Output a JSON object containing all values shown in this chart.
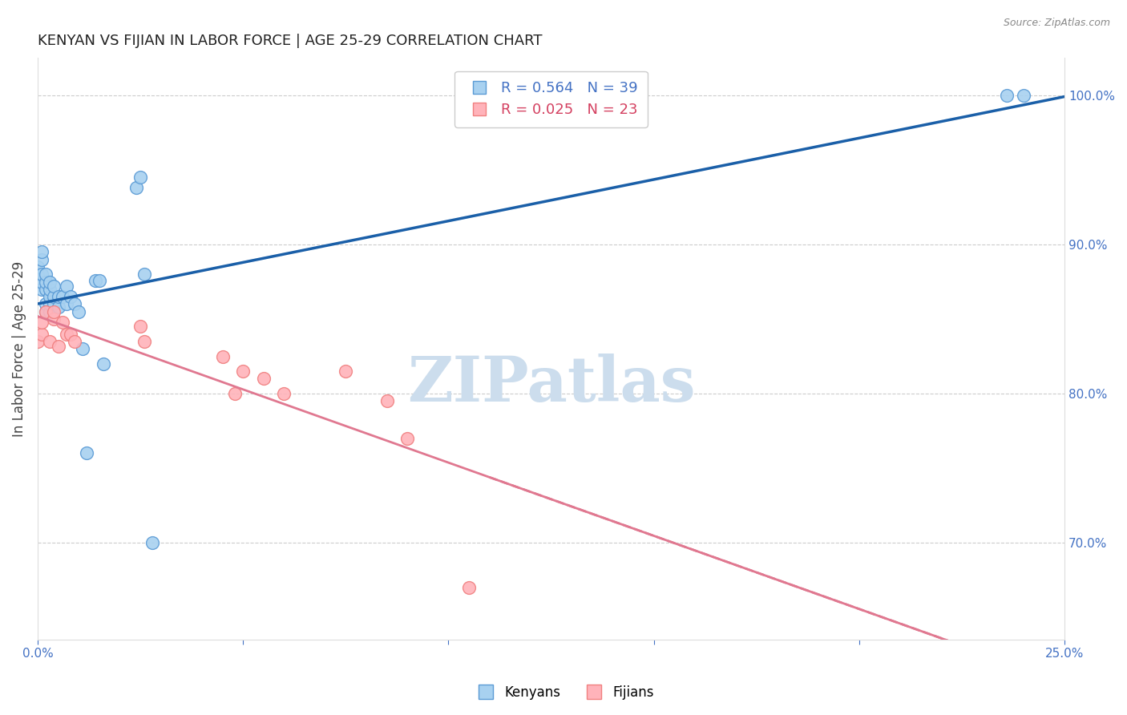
{
  "title": "KENYAN VS FIJIAN IN LABOR FORCE | AGE 25-29 CORRELATION CHART",
  "source": "Source: ZipAtlas.com",
  "ylabel": "In Labor Force | Age 25-29",
  "xlim": [
    0.0,
    0.25
  ],
  "ylim": [
    0.635,
    1.025
  ],
  "right_yticks": [
    0.7,
    0.8,
    0.9,
    1.0
  ],
  "right_yticklabels": [
    "70.0%",
    "80.0%",
    "90.0%",
    "100.0%"
  ],
  "xticks": [
    0.0,
    0.05,
    0.1,
    0.15,
    0.2,
    0.25
  ],
  "xticklabels": [
    "0.0%",
    "",
    "",
    "",
    "",
    "25.0%"
  ],
  "kenyan_x": [
    0.0,
    0.0,
    0.001,
    0.001,
    0.001,
    0.001,
    0.001,
    0.002,
    0.002,
    0.002,
    0.002,
    0.002,
    0.003,
    0.003,
    0.003,
    0.003,
    0.003,
    0.004,
    0.004,
    0.004,
    0.005,
    0.005,
    0.006,
    0.007,
    0.007,
    0.008,
    0.009,
    0.01,
    0.011,
    0.012,
    0.014,
    0.015,
    0.016,
    0.024,
    0.025,
    0.026,
    0.028,
    0.236,
    0.24
  ],
  "kenyan_y": [
    0.88,
    0.885,
    0.87,
    0.875,
    0.88,
    0.89,
    0.895,
    0.855,
    0.86,
    0.87,
    0.875,
    0.88,
    0.855,
    0.86,
    0.865,
    0.87,
    0.875,
    0.86,
    0.865,
    0.872,
    0.858,
    0.865,
    0.865,
    0.86,
    0.872,
    0.865,
    0.86,
    0.855,
    0.83,
    0.76,
    0.876,
    0.876,
    0.82,
    0.938,
    0.945,
    0.88,
    0.7,
    1.0,
    1.0
  ],
  "fijian_x": [
    0.0,
    0.001,
    0.001,
    0.002,
    0.003,
    0.004,
    0.004,
    0.005,
    0.006,
    0.007,
    0.008,
    0.009,
    0.025,
    0.026,
    0.045,
    0.048,
    0.05,
    0.055,
    0.06,
    0.075,
    0.085,
    0.09,
    0.105
  ],
  "fijian_y": [
    0.835,
    0.84,
    0.848,
    0.855,
    0.835,
    0.85,
    0.855,
    0.832,
    0.848,
    0.84,
    0.84,
    0.835,
    0.845,
    0.835,
    0.825,
    0.8,
    0.815,
    0.81,
    0.8,
    0.815,
    0.795,
    0.77,
    0.67
  ],
  "kenyan_color": "#a8d1f0",
  "fijian_color": "#ffb3ba",
  "kenyan_edge_color": "#5b9bd5",
  "fijian_edge_color": "#f08080",
  "kenyan_R": 0.564,
  "kenyan_N": 39,
  "fijian_R": 0.025,
  "fijian_N": 23,
  "regression_blue_color": "#1a5fa8",
  "regression_pink_color": "#e07890",
  "watermark": "ZIPatlas",
  "watermark_color": "#ccdded",
  "legend_kenyans": "Kenyans",
  "legend_fijians": "Fijians",
  "background_color": "#ffffff",
  "grid_color": "#cccccc",
  "title_color": "#222222",
  "axis_label_color": "#444444",
  "right_axis_label_color": "#4472c4",
  "bottom_axis_label_color": "#4472c4",
  "marker_size": 130
}
